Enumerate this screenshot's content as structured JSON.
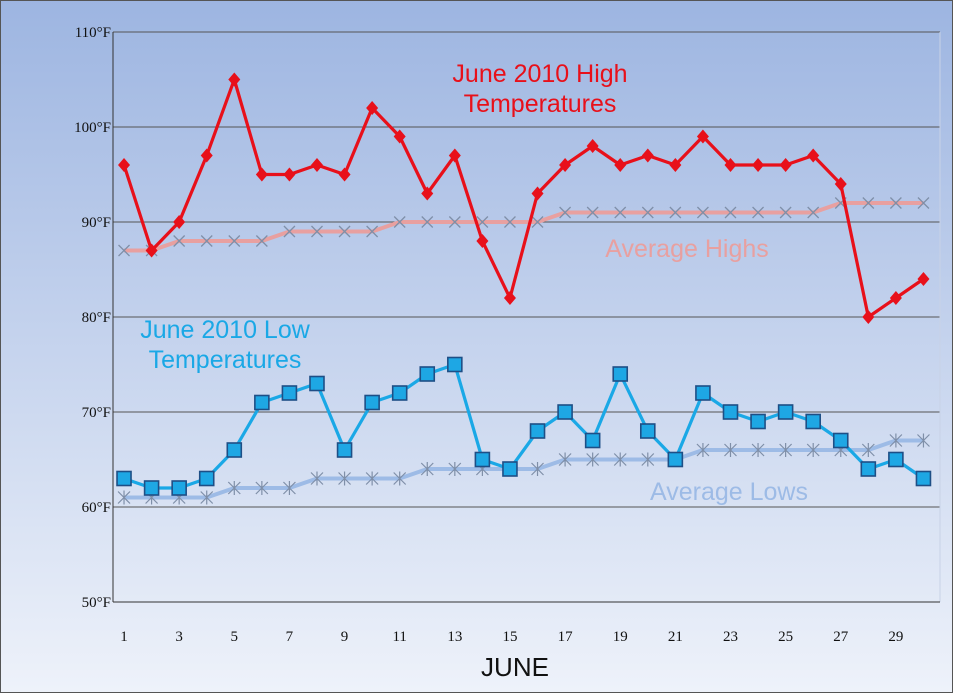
{
  "chart_data": {
    "type": "line",
    "xlabel": "JUNE",
    "ylabel": "",
    "x": [
      1,
      2,
      3,
      4,
      5,
      6,
      7,
      8,
      9,
      10,
      11,
      12,
      13,
      14,
      15,
      16,
      17,
      18,
      19,
      20,
      21,
      22,
      23,
      24,
      25,
      26,
      27,
      28,
      29,
      30
    ],
    "xlim": [
      0.6,
      30.6
    ],
    "x_tick_labels": [
      "1",
      "3",
      "5",
      "7",
      "9",
      "11",
      "13",
      "15",
      "17",
      "19",
      "21",
      "23",
      "25",
      "27",
      "29"
    ],
    "x_tick_values": [
      1,
      3,
      5,
      7,
      9,
      11,
      13,
      15,
      17,
      19,
      21,
      23,
      25,
      27,
      29
    ],
    "ylim": [
      50,
      110
    ],
    "y_tick_values": [
      50,
      60,
      70,
      80,
      90,
      100,
      110
    ],
    "y_tick_labels": [
      "50°F",
      "60°F",
      "70°F",
      "80°F",
      "90°F",
      "100°F",
      "110°F"
    ],
    "grid": true,
    "colors": {
      "background_top": "#9db5e1",
      "background_bottom": "#eef2fa",
      "grid": "#555555",
      "high": "#e8101a",
      "avg_high": "#e8a0a0",
      "low": "#1aa8e6",
      "avg_low": "#9dbbe6",
      "x_marker": "#7f8fa8"
    },
    "series": [
      {
        "name": "June 2010 High Temperatures",
        "marker": "diamond",
        "color": "#e8101a",
        "values": [
          96,
          87,
          90,
          97,
          105,
          95,
          95,
          96,
          95,
          102,
          99,
          93,
          97,
          88,
          82,
          93,
          96,
          98,
          96,
          97,
          96,
          99,
          96,
          96,
          96,
          97,
          94,
          80,
          82,
          84
        ]
      },
      {
        "name": "Average Highs",
        "marker": "x",
        "color": "#e8a0a0",
        "values": [
          87,
          87,
          88,
          88,
          88,
          88,
          89,
          89,
          89,
          89,
          90,
          90,
          90,
          90,
          90,
          90,
          91,
          91,
          91,
          91,
          91,
          91,
          91,
          91,
          91,
          91,
          92,
          92,
          92,
          92
        ]
      },
      {
        "name": "June 2010 Low Temperatures",
        "marker": "square",
        "color": "#1aa8e6",
        "values": [
          63,
          62,
          62,
          63,
          66,
          71,
          72,
          73,
          66,
          71,
          72,
          74,
          75,
          65,
          64,
          68,
          70,
          67,
          74,
          68,
          65,
          72,
          70,
          69,
          70,
          69,
          67,
          64,
          65,
          63
        ]
      },
      {
        "name": "Average Lows",
        "marker": "asterisk",
        "color": "#9dbbe6",
        "values": [
          61,
          61,
          61,
          61,
          62,
          62,
          62,
          63,
          63,
          63,
          63,
          64,
          64,
          64,
          64,
          64,
          65,
          65,
          65,
          65,
          65,
          66,
          66,
          66,
          66,
          66,
          66,
          66,
          67,
          67
        ]
      }
    ],
    "annotations": {
      "high_line1": "June 2010 High",
      "high_line2": "Temperatures",
      "avg_high": "Average Highs",
      "low_line1": "June 2010 Low",
      "low_line2": "Temperatures",
      "avg_low": "Average Lows"
    }
  }
}
